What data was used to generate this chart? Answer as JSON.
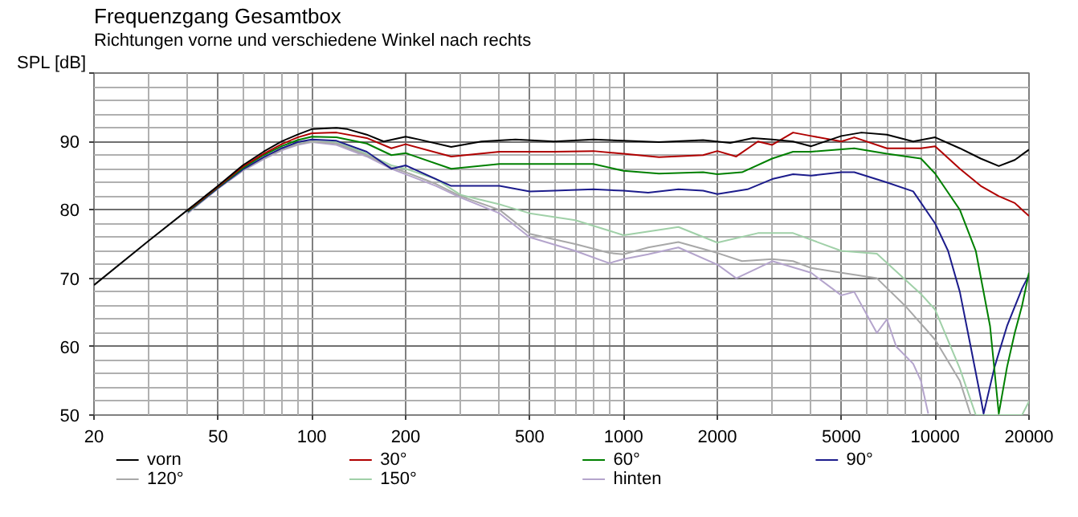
{
  "chart_data": {
    "type": "line",
    "title": "Frequenzgang Gesamtbox",
    "subtitle": "Richtungen vorne und verschiedene Winkel nach rechts",
    "ylabel": "SPL [dB]",
    "log": "x",
    "grid": true,
    "legend": "bottom",
    "line_style": "solid",
    "marker": "none",
    "xlim": [
      20,
      20000
    ],
    "ylim": [
      50,
      100
    ],
    "xticks": [
      20,
      50,
      100,
      200,
      500,
      1000,
      2000,
      5000,
      10000,
      20000
    ],
    "yticks": [
      50,
      60,
      70,
      80,
      90,
      {
        "value": 100,
        "label": null
      }
    ],
    "series": [
      {
        "name": "vorn",
        "color": "#000000",
        "x": [
          20,
          30,
          40,
          50,
          60,
          70,
          80,
          90,
          100,
          120,
          130,
          150,
          170,
          200,
          220,
          280,
          350,
          450,
          600,
          800,
          1000,
          1300,
          1800,
          2200,
          2600,
          3000,
          3500,
          4000,
          5000,
          5800,
          7000,
          8500,
          10000,
          12000,
          14000,
          16000,
          18000,
          20000
        ],
        "values": [
          69,
          75.5,
          80,
          83.5,
          86.5,
          88.5,
          90,
          91,
          91.8,
          92,
          91.8,
          91,
          90,
          90.7,
          90.3,
          89.2,
          90,
          90.3,
          90,
          90.3,
          90.1,
          89.9,
          90.2,
          89.8,
          90.5,
          90.3,
          90,
          89.3,
          90.8,
          91.3,
          91,
          90,
          90.6,
          89,
          87.5,
          86.4,
          87.3,
          88.8
        ]
      },
      {
        "name": "30°",
        "color": "#b00000",
        "x": [
          40,
          50,
          60,
          70,
          80,
          90,
          100,
          120,
          150,
          180,
          200,
          280,
          400,
          600,
          800,
          1000,
          1300,
          1800,
          2000,
          2300,
          2700,
          3000,
          3500,
          4000,
          5000,
          5500,
          7000,
          9000,
          10000,
          12000,
          14000,
          16000,
          18000,
          20000
        ],
        "values": [
          79.9,
          83.4,
          86.3,
          88.2,
          89.6,
          90.6,
          91.2,
          91.3,
          90.5,
          89,
          89.6,
          87.8,
          88.5,
          88.5,
          88.6,
          88.2,
          87.7,
          88,
          88.6,
          87.8,
          90,
          89.5,
          91.3,
          90.8,
          90,
          90.6,
          89,
          89,
          89.3,
          86,
          83.5,
          82,
          81,
          79.1
        ]
      },
      {
        "name": "60°",
        "color": "#008000",
        "x": [
          40,
          50,
          60,
          70,
          80,
          90,
          100,
          120,
          150,
          180,
          200,
          280,
          400,
          600,
          800,
          1000,
          1300,
          1800,
          2000,
          2400,
          3000,
          3500,
          4000,
          5500,
          7000,
          9000,
          10000,
          12000,
          13500,
          15000,
          16000,
          17000,
          18000,
          19000,
          20000
        ],
        "values": [
          79.8,
          83.3,
          86.1,
          88,
          89.3,
          90.2,
          90.7,
          90.6,
          89.7,
          88,
          88.3,
          86,
          86.7,
          86.7,
          86.7,
          85.7,
          85.3,
          85.5,
          85.2,
          85.5,
          87.5,
          88.5,
          88.5,
          89,
          88.2,
          87.5,
          85.3,
          80,
          74,
          63,
          50.2,
          57,
          62,
          66,
          70.8
        ]
      },
      {
        "name": "90°",
        "color": "#1c1c8c",
        "x": [
          40,
          50,
          60,
          70,
          80,
          90,
          100,
          120,
          150,
          180,
          200,
          280,
          400,
          500,
          600,
          800,
          1000,
          1200,
          1500,
          1800,
          2000,
          2500,
          3000,
          3500,
          4000,
          5000,
          5500,
          7000,
          8500,
          10000,
          11000,
          12000,
          13000,
          14000,
          14300,
          15500,
          17000,
          19000,
          20000
        ],
        "values": [
          79.7,
          83.2,
          85.9,
          87.7,
          89,
          89.9,
          90.3,
          90.1,
          88.5,
          86,
          86.5,
          83.5,
          83.5,
          82.7,
          82.8,
          83,
          82.8,
          82.5,
          83,
          82.8,
          82.3,
          83,
          84.5,
          85.2,
          85,
          85.5,
          85.5,
          84,
          82.7,
          78,
          74,
          68,
          60,
          52.5,
          50.2,
          57,
          63,
          68.5,
          70.5
        ]
      },
      {
        "name": "120°",
        "color": "#a8a8a8",
        "x": [
          40,
          50,
          60,
          70,
          80,
          90,
          100,
          120,
          150,
          180,
          200,
          250,
          300,
          400,
          500,
          700,
          900,
          1000,
          1200,
          1500,
          2000,
          2400,
          3000,
          3500,
          4000,
          5000,
          6500,
          8000,
          10000,
          12000,
          13000
        ],
        "values": [
          79.6,
          83.2,
          85.8,
          87.5,
          88.8,
          89.6,
          90,
          89.7,
          88,
          86.2,
          85.5,
          83.8,
          82,
          80,
          76.5,
          75,
          73.7,
          73.5,
          74.5,
          75.3,
          73.7,
          72.5,
          72.8,
          72.5,
          71.5,
          70.8,
          70,
          66,
          61,
          55,
          50
        ]
      },
      {
        "name": "150°",
        "color": "#a0d0a8",
        "x": [
          40,
          50,
          60,
          70,
          80,
          90,
          100,
          120,
          150,
          180,
          200,
          250,
          300,
          400,
          500,
          700,
          1000,
          1500,
          2000,
          2700,
          3500,
          5000,
          6500,
          9000,
          10000,
          12000,
          13500,
          19000,
          20000
        ],
        "values": [
          79.6,
          83.2,
          85.8,
          87.6,
          88.9,
          89.7,
          90,
          89.9,
          88.2,
          86.5,
          86,
          84.5,
          82.2,
          80.8,
          79.5,
          78.5,
          76.3,
          77.5,
          75.2,
          76.6,
          76.6,
          74,
          73.6,
          67.7,
          65.4,
          56.8,
          50,
          50,
          52
        ]
      },
      {
        "name": "hinten",
        "color": "#b4a4cc",
        "x": [
          40,
          50,
          60,
          70,
          80,
          90,
          100,
          120,
          150,
          180,
          200,
          250,
          300,
          400,
          500,
          700,
          900,
          1000,
          1200,
          1500,
          2000,
          2300,
          2700,
          3000,
          4000,
          5000,
          5500,
          6500,
          7000,
          7500,
          8500,
          9000,
          9500
        ],
        "values": [
          79.5,
          83.1,
          85.7,
          87.4,
          88.7,
          89.5,
          89.9,
          89.5,
          87.8,
          86,
          85.2,
          83.5,
          81.8,
          79.5,
          76,
          74,
          72.2,
          72.8,
          73.5,
          74.5,
          72,
          70,
          71.5,
          72.5,
          70.8,
          67.5,
          68,
          62,
          64,
          60,
          57.5,
          55,
          50.2
        ]
      }
    ]
  }
}
